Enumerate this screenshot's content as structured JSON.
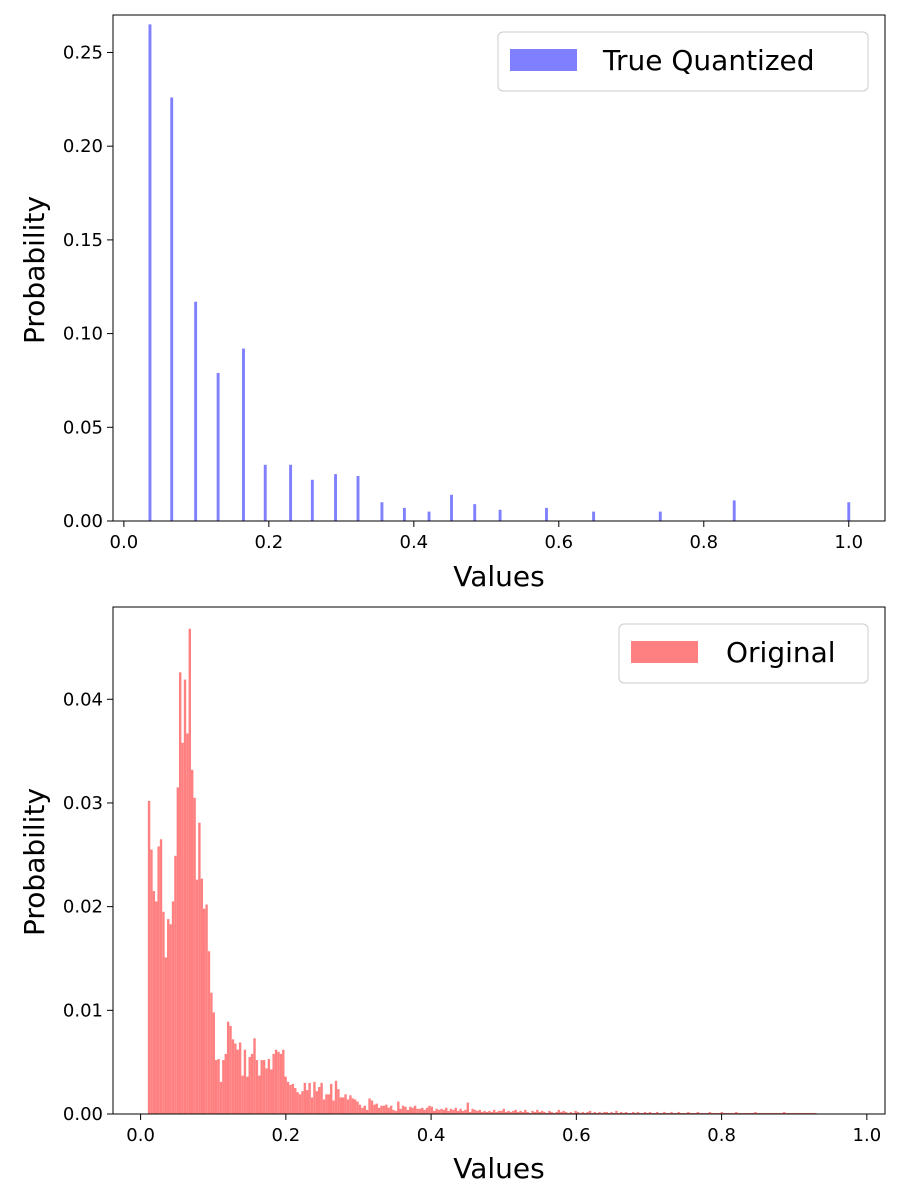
{
  "chart_data": [
    {
      "type": "bar",
      "title": "",
      "xlabel": "Values",
      "ylabel": "Probability",
      "xlim": [
        -0.015,
        1.05
      ],
      "ylim": [
        0,
        0.27
      ],
      "xticks": [
        0.0,
        0.2,
        0.4,
        0.6,
        0.8,
        1.0
      ],
      "xtick_labels": [
        "0.0",
        "0.2",
        "0.4",
        "0.6",
        "0.8",
        "1.0"
      ],
      "yticks": [
        0,
        0.05,
        0.1,
        0.15,
        0.2,
        0.25
      ],
      "ytick_labels": [
        "0.00",
        "0.05",
        "0.10",
        "0.15",
        "0.20",
        "0.25"
      ],
      "bar_width": 0.004,
      "legend": {
        "position": "upper right"
      },
      "grid": false,
      "series": [
        {
          "name": "True Quantized",
          "color": "#8080ff",
          "x": [
            0.036,
            0.066,
            0.099,
            0.13,
            0.165,
            0.195,
            0.23,
            0.26,
            0.292,
            0.323,
            0.356,
            0.387,
            0.421,
            0.452,
            0.484,
            0.519,
            0.583,
            0.648,
            0.74,
            0.842,
            1.0
          ],
          "values": [
            0.265,
            0.226,
            0.117,
            0.079,
            0.092,
            0.03,
            0.03,
            0.022,
            0.025,
            0.024,
            0.01,
            0.007,
            0.005,
            0.014,
            0.009,
            0.006,
            0.007,
            0.005,
            0.005,
            0.011,
            0.01
          ]
        }
      ]
    },
    {
      "type": "bar",
      "title": "",
      "xlabel": "Values",
      "ylabel": "Probability",
      "xlim": [
        -0.038,
        1.025
      ],
      "ylim": [
        0,
        0.0489
      ],
      "xticks": [
        0.0,
        0.2,
        0.4,
        0.6,
        0.8,
        1.0
      ],
      "xtick_labels": [
        "0.0",
        "0.2",
        "0.4",
        "0.6",
        "0.8",
        "1.0"
      ],
      "yticks": [
        0,
        0.01,
        0.02,
        0.03,
        0.04
      ],
      "ytick_labels": [
        "0.00",
        "0.01",
        "0.02",
        "0.03",
        "0.04"
      ],
      "bin_start": 0.01,
      "bin_width": 0.0033,
      "legend": {
        "position": "upper right"
      },
      "grid": false,
      "series": [
        {
          "name": "Original",
          "color": "#ff8080",
          "values": [
            0.0302,
            0.0255,
            0.0215,
            0.0205,
            0.0258,
            0.0265,
            0.0195,
            0.0151,
            0.0188,
            0.0183,
            0.0205,
            0.0249,
            0.0315,
            0.0426,
            0.0358,
            0.0419,
            0.0367,
            0.0468,
            0.0332,
            0.0305,
            0.0226,
            0.0281,
            0.0227,
            0.0198,
            0.0202,
            0.0157,
            0.0117,
            0.0098,
            0.0052,
            0.0053,
            0.0031,
            0.0052,
            0.0058,
            0.0089,
            0.0085,
            0.0072,
            0.0068,
            0.0062,
            0.0069,
            0.0037,
            0.0062,
            0.0036,
            0.0055,
            0.0058,
            0.0073,
            0.0052,
            0.0037,
            0.0052,
            0.0052,
            0.0044,
            0.0053,
            0.0043,
            0.0058,
            0.0062,
            0.006,
            0.0058,
            0.0062,
            0.0036,
            0.0031,
            0.0028,
            0.0029,
            0.0025,
            0.0021,
            0.0019,
            0.0022,
            0.003,
            0.0023,
            0.003,
            0.0016,
            0.0031,
            0.0022,
            0.0026,
            0.003,
            0.0014,
            0.0019,
            0.0019,
            0.0029,
            0.0013,
            0.0032,
            0.0024,
            0.0016,
            0.0016,
            0.0019,
            0.0014,
            0.0018,
            0.0015,
            0.0014,
            0.0012,
            0.0009,
            0.0006,
            0.0008,
            0.0004,
            0.0015,
            0.0013,
            0.0009,
            0.001,
            0.0006,
            0.0008,
            0.0008,
            0.0009,
            0.0006,
            0.0008,
            0.0004,
            0.0003,
            0.0012,
            0.0005,
            0.0008,
            0.0007,
            0.0004,
            0.0007,
            0.0006,
            0.0008,
            0.0005,
            0.0005,
            0.0006,
            0.0004,
            0.0006,
            0.0008,
            0.0007,
            0.0003,
            0.0005,
            0.0004,
            0.0005,
            0.0004,
            0.0006,
            0.0003,
            0.0005,
            0.0004,
            0.0006,
            0.0003,
            0.0005,
            0.0003,
            0.0004,
            0.0011,
            0.0002,
            0.0005,
            0.0004,
            0.0003,
            0.0004,
            0.0002,
            0.0003,
            0.0002,
            0.0003,
            0.0002,
            0.0004,
            0.0002,
            0.0003,
            0.0003,
            0.0005,
            0.0002,
            0.0003,
            0.0002,
            0.0003,
            0.0004,
            0.0002,
            0.0003,
            0.0002,
            0.0004,
            0.0002,
            0.0001,
            0.0003,
            0.0002,
            0.0004,
            0.0002,
            0.0003,
            0.0002,
            0.0001,
            0.0003,
            0.0002,
            0.0001,
            0.0002,
            0.0004,
            0.0002,
            0.0003,
            0.0002,
            0.0001,
            0.0002,
            0.0001,
            0.0003,
            0.0002,
            0.0001,
            0.0002,
            0.0001,
            0.0002,
            0.0003,
            0.0001,
            0.0002,
            0.0001,
            0.0002,
            0.0001,
            0.0002,
            0.0002,
            0.0001,
            0.0002,
            0.0001,
            0.0003,
            0.0001,
            0.0002,
            0.0001,
            0.0002,
            0.0001,
            0.0001,
            0.0002,
            0.0001,
            0.0002,
            0.0001,
            0.0001,
            0.0002,
            0.0001,
            0.0002,
            0.0001,
            0.0001,
            0.0002,
            0.0001,
            0.0001,
            0.0002,
            0.0001,
            0.0001,
            0.0002,
            0.0001,
            0.0001,
            0.0002,
            0.0001,
            0.0001,
            0.0001,
            0.0002,
            0.0001,
            0.0001,
            0.0001,
            0.0002,
            0.0001,
            0.0001,
            0.0001,
            0.0001,
            0.0002,
            0.0001,
            0.0001,
            0.0001,
            0.0001,
            0.0002,
            0.0001,
            0.0001,
            0.0001,
            0.0001,
            0.0001,
            0.0002,
            0.0001,
            0.0001,
            0.0001,
            0.0001,
            0.0001,
            0.0001,
            0.0001,
            0.0002,
            0.0001,
            0.0001,
            0.0001,
            0.0001,
            0.0001,
            0.0001,
            0.0001,
            0.0001,
            0.0001,
            0.0001,
            0.0001,
            0.0002,
            0.0001,
            0.0001,
            0.0001,
            0.0001,
            0.0001,
            0.0001,
            0.0001,
            0.0001,
            0.0001,
            0.0001,
            0.0001,
            0.0001,
            0.0001
          ]
        }
      ]
    }
  ]
}
